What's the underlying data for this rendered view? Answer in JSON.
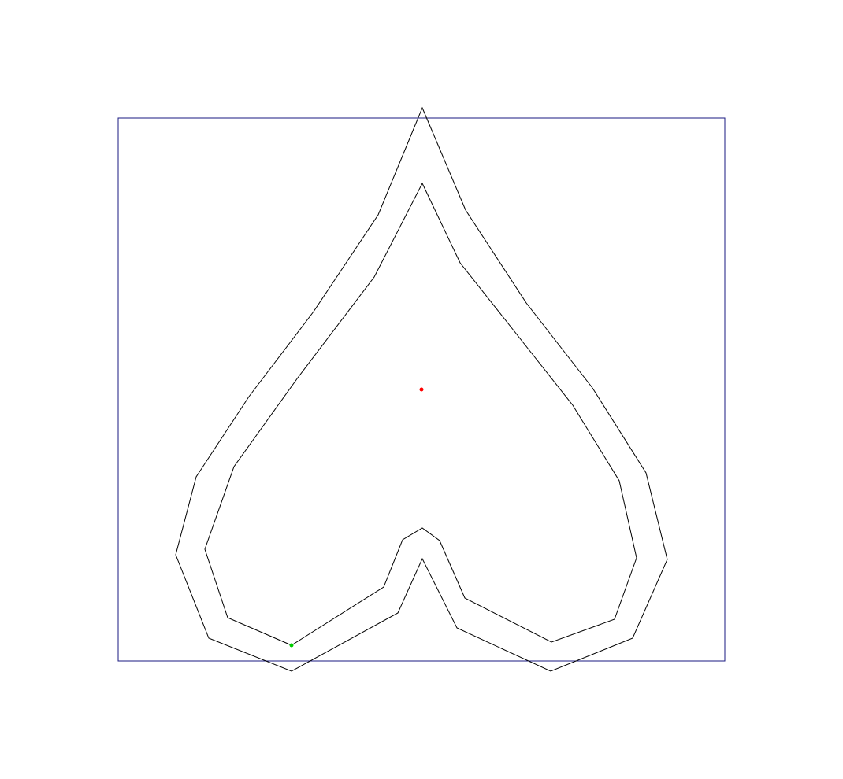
{
  "diagram": {
    "elements": [
      {
        "id": "bounding-rectangle",
        "kind": "rect",
        "stroke": "#1a1a80"
      },
      {
        "id": "outer-spade-outline",
        "kind": "polygon",
        "stroke": "#000000"
      },
      {
        "id": "inner-spade-outline",
        "kind": "polygon",
        "stroke": "#000000"
      },
      {
        "id": "center-point",
        "kind": "point",
        "fill": "#ff0000"
      },
      {
        "id": "start-point",
        "kind": "point",
        "fill": "#00cc00"
      }
    ]
  }
}
